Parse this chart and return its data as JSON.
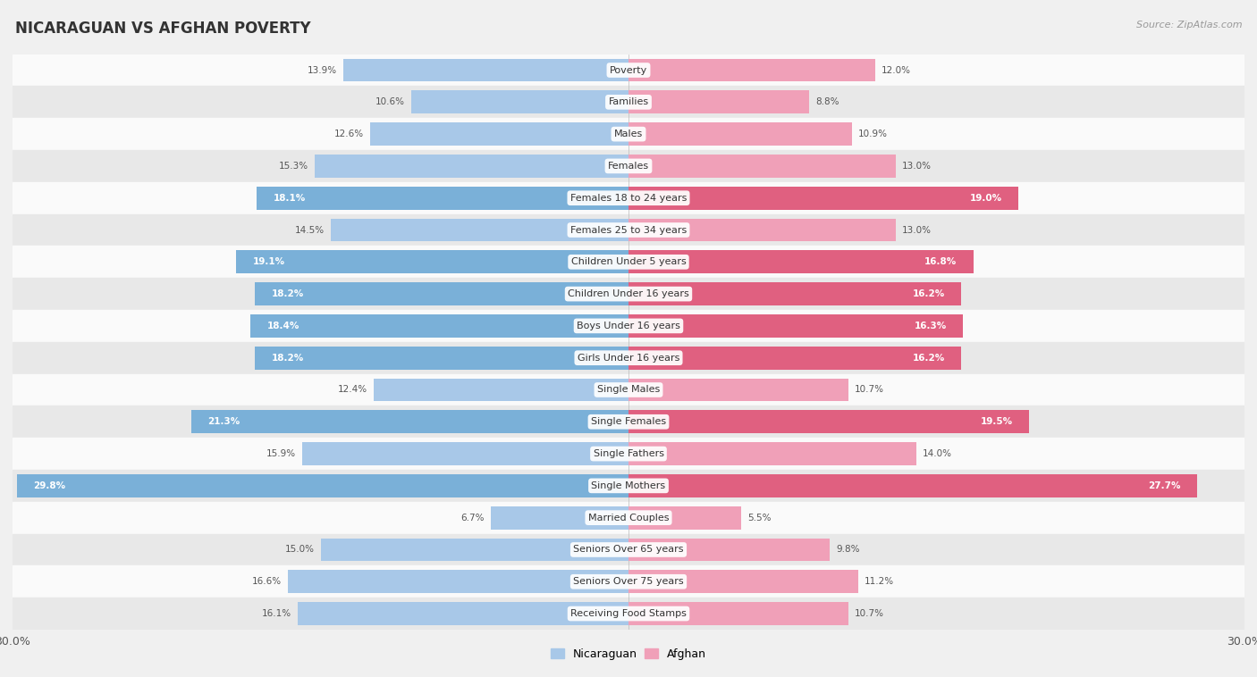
{
  "title": "NICARAGUAN VS AFGHAN POVERTY",
  "source": "Source: ZipAtlas.com",
  "categories": [
    "Poverty",
    "Families",
    "Males",
    "Females",
    "Females 18 to 24 years",
    "Females 25 to 34 years",
    "Children Under 5 years",
    "Children Under 16 years",
    "Boys Under 16 years",
    "Girls Under 16 years",
    "Single Males",
    "Single Females",
    "Single Fathers",
    "Single Mothers",
    "Married Couples",
    "Seniors Over 65 years",
    "Seniors Over 75 years",
    "Receiving Food Stamps"
  ],
  "nicaraguan": [
    13.9,
    10.6,
    12.6,
    15.3,
    18.1,
    14.5,
    19.1,
    18.2,
    18.4,
    18.2,
    12.4,
    21.3,
    15.9,
    29.8,
    6.7,
    15.0,
    16.6,
    16.1
  ],
  "afghan": [
    12.0,
    8.8,
    10.9,
    13.0,
    19.0,
    13.0,
    16.8,
    16.2,
    16.3,
    16.2,
    10.7,
    19.5,
    14.0,
    27.7,
    5.5,
    9.8,
    11.2,
    10.7
  ],
  "nicaraguan_color_default": "#a8c8e8",
  "nicaraguan_color_highlight": "#7ab0d8",
  "afghan_color_default": "#f0a0b8",
  "afghan_color_highlight": "#e06080",
  "highlight_rows": [
    4,
    6,
    7,
    8,
    9,
    11,
    13
  ],
  "background_color": "#f0f0f0",
  "row_bg_light": "#fafafa",
  "row_bg_dark": "#e8e8e8",
  "axis_max": 30.0,
  "legend_nicaraguan": "Nicaraguan",
  "legend_afghan": "Afghan"
}
